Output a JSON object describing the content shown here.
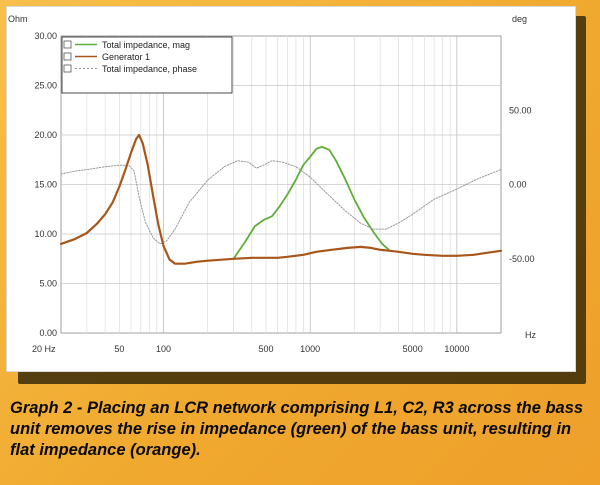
{
  "chart_data": {
    "type": "line",
    "title": "",
    "xscale": "log",
    "xlim": [
      20,
      20000
    ],
    "x_unit_label": "Hz",
    "x_first_label": "20 Hz",
    "x_ticks": [
      "50",
      "100",
      "500",
      "1000",
      "5000",
      "10000"
    ],
    "ylim_left": [
      0,
      30
    ],
    "y_left_unit": "Ohm",
    "y_left_ticks": [
      "30.00",
      "25.00",
      "20.00",
      "15.00",
      "10.00",
      "5.00",
      "0.00"
    ],
    "ylim_right": [
      -100,
      100
    ],
    "y_right_unit": "deg",
    "y_right_ticks": [
      "50.00",
      "0.00",
      "-50.00"
    ],
    "grid": true,
    "legend_position": "top-left",
    "legend": [
      "Total impedance, mag",
      "Generator 1",
      "Total impedance, phase"
    ],
    "series": [
      {
        "name": "Total impedance, mag",
        "color": "#5fae3a",
        "axis": "left",
        "points": [
          [
            300,
            7.5
          ],
          [
            360,
            9.2
          ],
          [
            420,
            10.8
          ],
          [
            480,
            11.4
          ],
          [
            550,
            11.8
          ],
          [
            620,
            12.8
          ],
          [
            700,
            14.0
          ],
          [
            800,
            15.5
          ],
          [
            900,
            17.0
          ],
          [
            1000,
            17.8
          ],
          [
            1100,
            18.6
          ],
          [
            1200,
            18.8
          ],
          [
            1350,
            18.5
          ],
          [
            1500,
            17.4
          ],
          [
            1700,
            15.8
          ],
          [
            2000,
            13.5
          ],
          [
            2300,
            11.8
          ],
          [
            2700,
            10.2
          ],
          [
            3100,
            9.0
          ],
          [
            3500,
            8.3
          ]
        ]
      },
      {
        "name": "Generator 1",
        "color": "#a8561a",
        "axis": "left",
        "points": [
          [
            20,
            9.0
          ],
          [
            25,
            9.5
          ],
          [
            30,
            10.1
          ],
          [
            35,
            11.0
          ],
          [
            40,
            12.0
          ],
          [
            45,
            13.2
          ],
          [
            50,
            14.8
          ],
          [
            55,
            16.5
          ],
          [
            60,
            18.2
          ],
          [
            65,
            19.6
          ],
          [
            68,
            20.0
          ],
          [
            72,
            19.2
          ],
          [
            78,
            17.0
          ],
          [
            85,
            13.8
          ],
          [
            92,
            11.0
          ],
          [
            100,
            8.8
          ],
          [
            110,
            7.4
          ],
          [
            120,
            7.0
          ],
          [
            140,
            7.0
          ],
          [
            170,
            7.2
          ],
          [
            200,
            7.3
          ],
          [
            300,
            7.5
          ],
          [
            400,
            7.6
          ],
          [
            500,
            7.6
          ],
          [
            600,
            7.6
          ],
          [
            700,
            7.7
          ],
          [
            900,
            7.9
          ],
          [
            1100,
            8.2
          ],
          [
            1400,
            8.4
          ],
          [
            1800,
            8.6
          ],
          [
            2200,
            8.7
          ],
          [
            2600,
            8.6
          ],
          [
            3000,
            8.4
          ],
          [
            3500,
            8.3
          ],
          [
            4000,
            8.2
          ],
          [
            5000,
            8.0
          ],
          [
            6000,
            7.9
          ],
          [
            8000,
            7.8
          ],
          [
            10000,
            7.8
          ],
          [
            13000,
            7.9
          ],
          [
            16000,
            8.1
          ],
          [
            20000,
            8.3
          ]
        ]
      },
      {
        "name": "Total impedance, phase",
        "color": "#999999",
        "axis": "right",
        "points": [
          [
            20,
            7
          ],
          [
            25,
            9
          ],
          [
            30,
            10
          ],
          [
            40,
            12
          ],
          [
            50,
            13
          ],
          [
            58,
            13
          ],
          [
            63,
            9
          ],
          [
            68,
            -8
          ],
          [
            75,
            -25
          ],
          [
            85,
            -36
          ],
          [
            95,
            -40
          ],
          [
            105,
            -38
          ],
          [
            120,
            -30
          ],
          [
            150,
            -12
          ],
          [
            200,
            3
          ],
          [
            260,
            12
          ],
          [
            320,
            16
          ],
          [
            380,
            15
          ],
          [
            430,
            11
          ],
          [
            480,
            13
          ],
          [
            550,
            16
          ],
          [
            650,
            15
          ],
          [
            800,
            12
          ],
          [
            1000,
            5
          ],
          [
            1300,
            -6
          ],
          [
            1700,
            -17
          ],
          [
            2200,
            -26
          ],
          [
            2700,
            -30
          ],
          [
            3300,
            -30
          ],
          [
            4000,
            -26
          ],
          [
            5000,
            -20
          ],
          [
            7000,
            -10
          ],
          [
            10000,
            -3
          ],
          [
            14000,
            4
          ],
          [
            20000,
            10
          ]
        ]
      }
    ]
  },
  "caption": "Graph 2 - Placing an LCR network comprising L1, C2, R3 across the bass unit removes the rise in impedance (green) of the bass unit, resulting in flat impedance (orange)."
}
